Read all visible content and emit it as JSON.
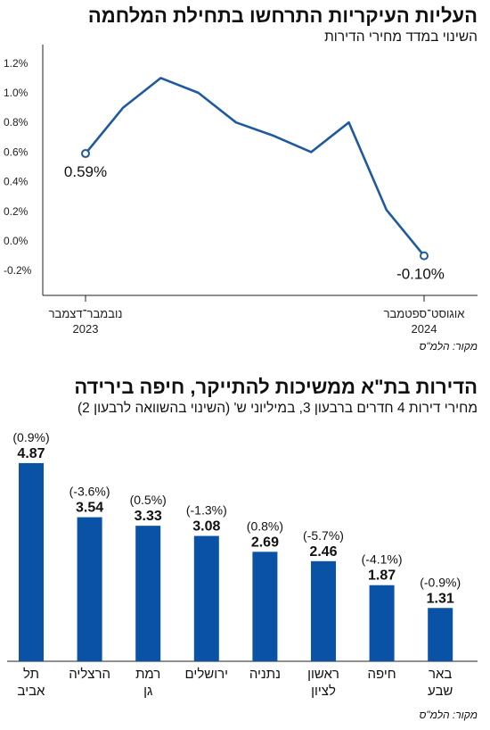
{
  "chart_data": [
    {
      "type": "line",
      "title": "העליות העיקריות התרחשו בתחילת המלחמה",
      "subtitle": "השינוי במדד מחירי הדירות",
      "source": "מקור: הלמ\"ס",
      "y_ticks": [
        "1.2%",
        "1.0%",
        "0.8%",
        "0.6%",
        "0.4%",
        "0.2%",
        "0.0%",
        "-0.2%"
      ],
      "ylim": [
        -0.3,
        1.25
      ],
      "x_ticks": [
        {
          "line1": "נובמבר־דצמבר",
          "line2": "2023",
          "index": 0
        },
        {
          "line1": "אוגוסט־ספטמבר",
          "line2": "2024",
          "index": 9
        }
      ],
      "values": [
        0.59,
        0.9,
        1.1,
        1.0,
        0.8,
        0.71,
        0.6,
        0.8,
        0.21,
        -0.1
      ],
      "annotations": [
        {
          "index": 0,
          "text": "0.59%"
        },
        {
          "index": 9,
          "text": "-0.10%"
        }
      ],
      "color": "#1f5a9e"
    },
    {
      "type": "bar",
      "title": "הדירות בת\"א ממשיכות להתייקר, חיפה בירידה",
      "subtitle": "מחירי דירות 4 חדרים ברבעון 3, במיליוני ש' (השינוי בהשוואה לרבעון 2)",
      "source": "מקור: הלמ\"ס",
      "categories": [
        [
          "תל",
          "אביב"
        ],
        [
          "הרצליה"
        ],
        [
          "רמת",
          "גן"
        ],
        [
          "ירושלים"
        ],
        [
          "נתניה"
        ],
        [
          "ראשון",
          "לציון"
        ],
        [
          "חיפה"
        ],
        [
          "באר",
          "שבע"
        ]
      ],
      "values": [
        4.87,
        3.54,
        3.33,
        3.08,
        2.69,
        2.46,
        1.87,
        1.31
      ],
      "value_labels": [
        "4.87",
        "3.54",
        "3.33",
        "3.08",
        "2.69",
        "2.46",
        "1.87",
        "1.31"
      ],
      "changes": [
        "(0.9%)",
        "(-3.6%)",
        "(0.5%)",
        "(-1.3%)",
        "(0.8%)",
        "(-5.7%)",
        "(-4.1%)",
        "(-0.9%)"
      ],
      "color": "#0a52a6"
    }
  ]
}
